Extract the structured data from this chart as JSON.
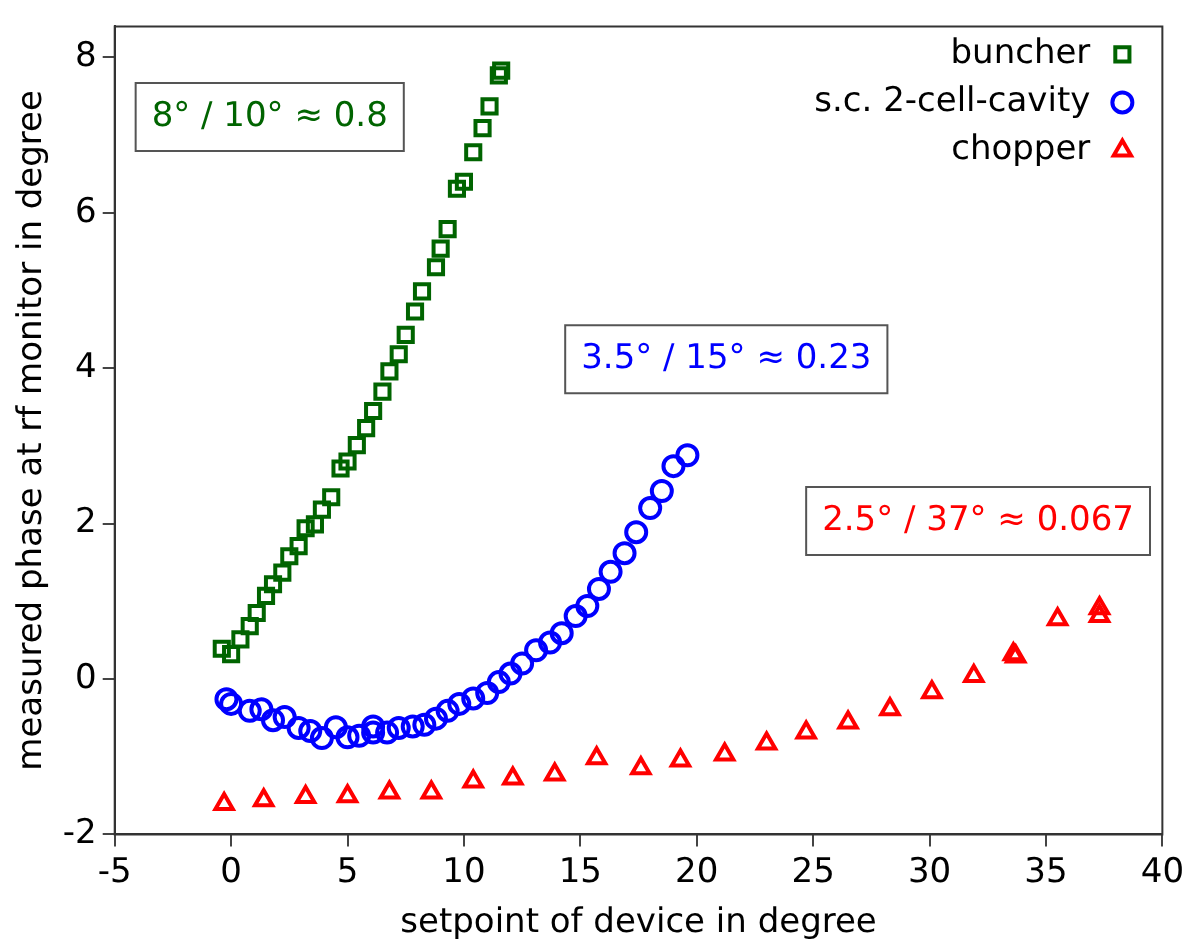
{
  "chart_data": {
    "type": "scatter",
    "xlabel": "setpoint of device in degree",
    "ylabel": "measured phase at rf monitor in degree",
    "xlim": [
      -5,
      40
    ],
    "xticks": [
      -5,
      0,
      5,
      10,
      15,
      20,
      25,
      30,
      35,
      40
    ],
    "ylim": [
      -2,
      8.4
    ],
    "yticks": [
      -2,
      0,
      2,
      4,
      6,
      8
    ],
    "grid": false,
    "legend": "top right",
    "annotations": [
      "8° / 10° ≈ 0.8",
      "3.5° / 15° ≈ 0.23",
      "2.5° / 37° ≈ 0.067"
    ],
    "series": [
      {
        "name": "buncher",
        "color": "#006400",
        "marker": "square",
        "x": [
          -0.4,
          0,
          0.4,
          0.8,
          1.1,
          1.5,
          1.8,
          2.2,
          2.5,
          2.9,
          3.2,
          3.6,
          3.9,
          4.3,
          4.7,
          5.0,
          5.4,
          5.8,
          6.1,
          6.5,
          6.8,
          7.2,
          7.5,
          7.9,
          8.2,
          8.8,
          9.0,
          9.3,
          9.7,
          10.0,
          10.4,
          10.8,
          11.1,
          11.5,
          11.6
        ],
        "values": [
          0.39,
          0.32,
          0.51,
          0.68,
          0.85,
          1.07,
          1.22,
          1.37,
          1.58,
          1.71,
          1.94,
          1.99,
          2.18,
          2.34,
          2.71,
          2.8,
          3.01,
          3.23,
          3.45,
          3.7,
          3.96,
          4.18,
          4.43,
          4.73,
          4.99,
          5.3,
          5.54,
          5.79,
          6.31,
          6.4,
          6.78,
          7.09,
          7.37,
          7.77,
          7.83
        ]
      },
      {
        "name": "s.c. 2-cell-cavity",
        "color": "#0000ff",
        "marker": "circle",
        "x": [
          -0.2,
          0,
          0.8,
          1.3,
          1.8,
          2.3,
          2.9,
          3.4,
          3.9,
          4.5,
          5.0,
          5.5,
          6.1,
          6.1,
          6.7,
          7.2,
          7.8,
          8.3,
          8.8,
          9.3,
          9.8,
          10.4,
          11.0,
          11.5,
          12.0,
          12.5,
          13.1,
          13.7,
          14.2,
          14.8,
          15.3,
          15.8,
          16.3,
          16.9,
          17.4,
          18.0,
          18.5,
          19.0,
          19.6
        ],
        "values": [
          -0.26,
          -0.32,
          -0.41,
          -0.39,
          -0.53,
          -0.49,
          -0.63,
          -0.67,
          -0.76,
          -0.62,
          -0.75,
          -0.73,
          -0.61,
          -0.69,
          -0.69,
          -0.63,
          -0.61,
          -0.59,
          -0.51,
          -0.41,
          -0.32,
          -0.25,
          -0.18,
          -0.04,
          0.07,
          0.2,
          0.37,
          0.47,
          0.59,
          0.81,
          0.94,
          1.16,
          1.38,
          1.62,
          1.89,
          2.2,
          2.42,
          2.74,
          2.88
        ]
      },
      {
        "name": "chopper",
        "color": "#ff0000",
        "marker": "triangle",
        "x": [
          -0.3,
          1.4,
          3.2,
          5.0,
          6.8,
          8.6,
          10.4,
          12.1,
          13.9,
          15.7,
          17.6,
          19.3,
          21.2,
          23.0,
          24.7,
          26.5,
          28.3,
          30.1,
          31.9,
          33.6,
          33.7,
          35.5,
          37.3,
          37.3
        ],
        "values": [
          -1.61,
          -1.56,
          -1.52,
          -1.51,
          -1.46,
          -1.46,
          -1.32,
          -1.28,
          -1.23,
          -1.02,
          -1.15,
          -1.05,
          -0.97,
          -0.83,
          -0.69,
          -0.56,
          -0.39,
          -0.17,
          0.04,
          0.32,
          0.29,
          0.77,
          0.91,
          0.81
        ]
      }
    ]
  }
}
